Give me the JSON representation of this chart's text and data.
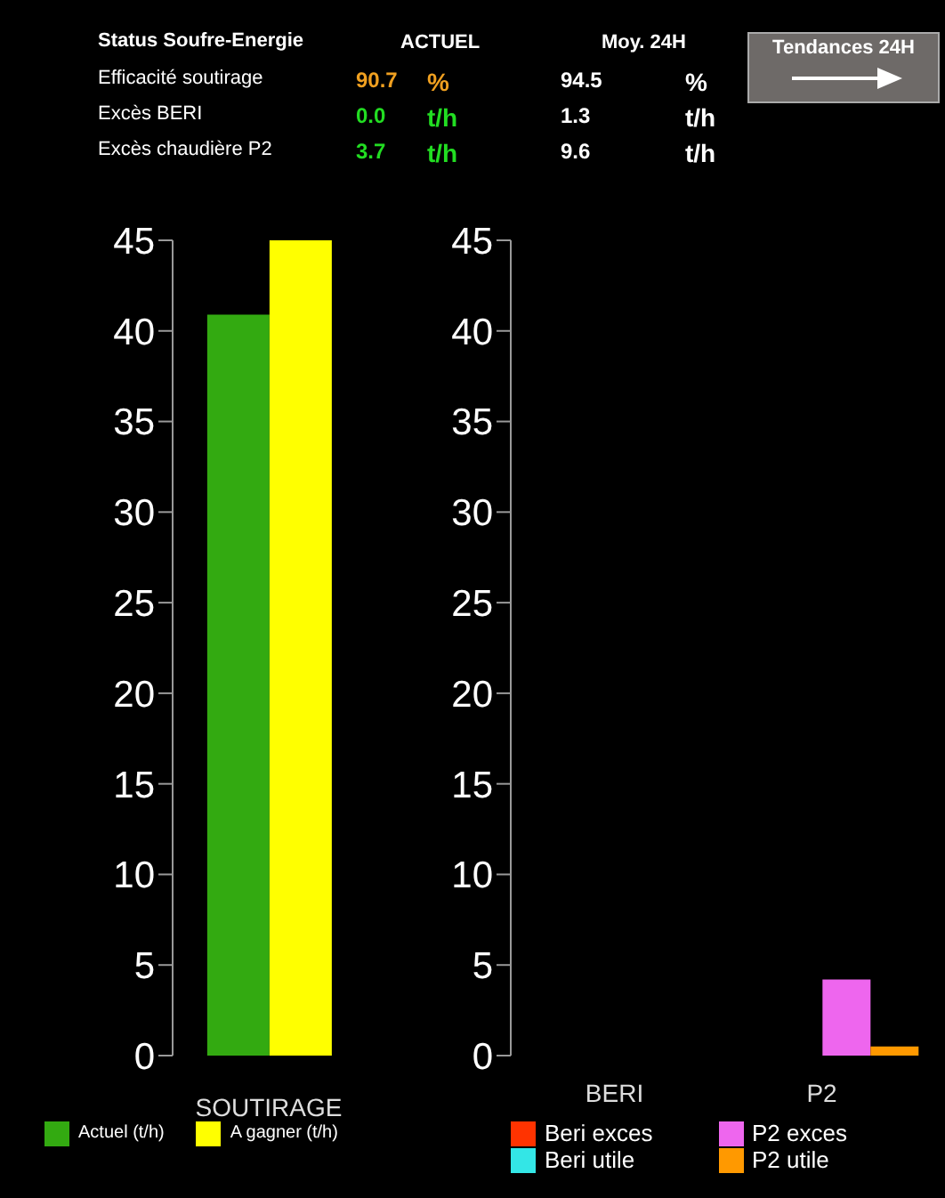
{
  "chart_data": [
    {
      "type": "other",
      "title": "Status Soufre-Energie",
      "annotations": [
        "ACTUEL",
        "Moy. 24H",
        "Efficacité soutirage",
        "90.7",
        "%",
        "94.5",
        "%",
        "Excès BERI",
        "0.0",
        "t/h",
        "1.3",
        "t/h",
        "Excès chaudière P2",
        "3.7",
        "t/h",
        "9.6",
        "t/h",
        "Tendances 24H"
      ]
    },
    {
      "type": "bar",
      "categories": [
        null
      ],
      "xlabel": "SOUTIRAGE",
      "ylim": [
        0,
        45
      ],
      "yticks": [
        0,
        5,
        10,
        15,
        20,
        25,
        30,
        35,
        40,
        45
      ],
      "legend": "bottom",
      "series": [
        {
          "name": "Actuel (t/h)",
          "color": "#33aa11",
          "values": [
            40.9
          ]
        },
        {
          "name": "A gagner (t/h)",
          "color": "#ffff00",
          "values": [
            45
          ]
        }
      ]
    },
    {
      "type": "bar",
      "categories": [
        "BERI",
        "P2"
      ],
      "ylim": [
        0,
        45
      ],
      "yticks": [
        0,
        5,
        10,
        15,
        20,
        25,
        30,
        35,
        40,
        45
      ],
      "legend": "bottom",
      "series": [
        {
          "name": "Beri exces",
          "color": "#ff3300",
          "values": [
            0,
            null
          ]
        },
        {
          "name": "Beri utile",
          "color": "#33e6e6",
          "values": [
            0,
            null
          ]
        },
        {
          "name": "P2 exces",
          "color": "#ee66ee",
          "values": [
            null,
            4.2
          ]
        },
        {
          "name": "P2 utile",
          "color": "#ff9900",
          "values": [
            null,
            0.5
          ]
        }
      ]
    }
  ]
}
